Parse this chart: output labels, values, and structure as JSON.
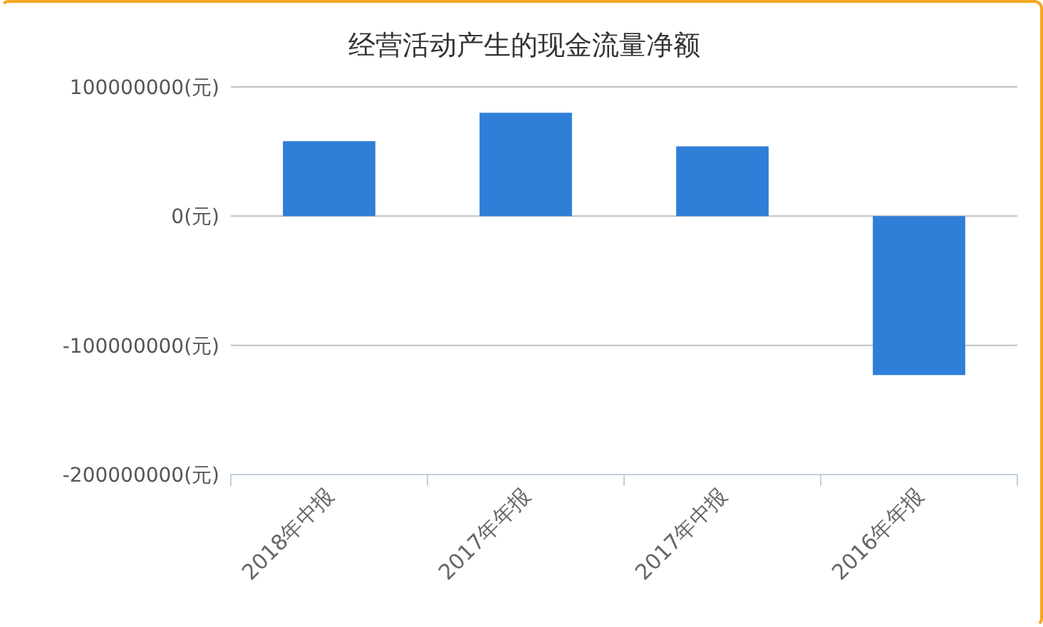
{
  "chart_data": {
    "type": "bar",
    "title": "经营活动产生的现金流量净额",
    "categories": [
      "2018年中报",
      "2017年年报",
      "2017年中报",
      "2016年年报"
    ],
    "values": [
      58000000,
      80000000,
      54000000,
      -123000000
    ],
    "color": "#2f7ed8",
    "ylim": [
      -200000000,
      100000000
    ],
    "yticks": [
      {
        "value": -200000000,
        "label": "-200000000(元)"
      },
      {
        "value": -100000000,
        "label": "-100000000(元)"
      },
      {
        "value": 0,
        "label": "0(元)"
      },
      {
        "value": 100000000,
        "label": "100000000(元)"
      }
    ],
    "grid": "y"
  }
}
